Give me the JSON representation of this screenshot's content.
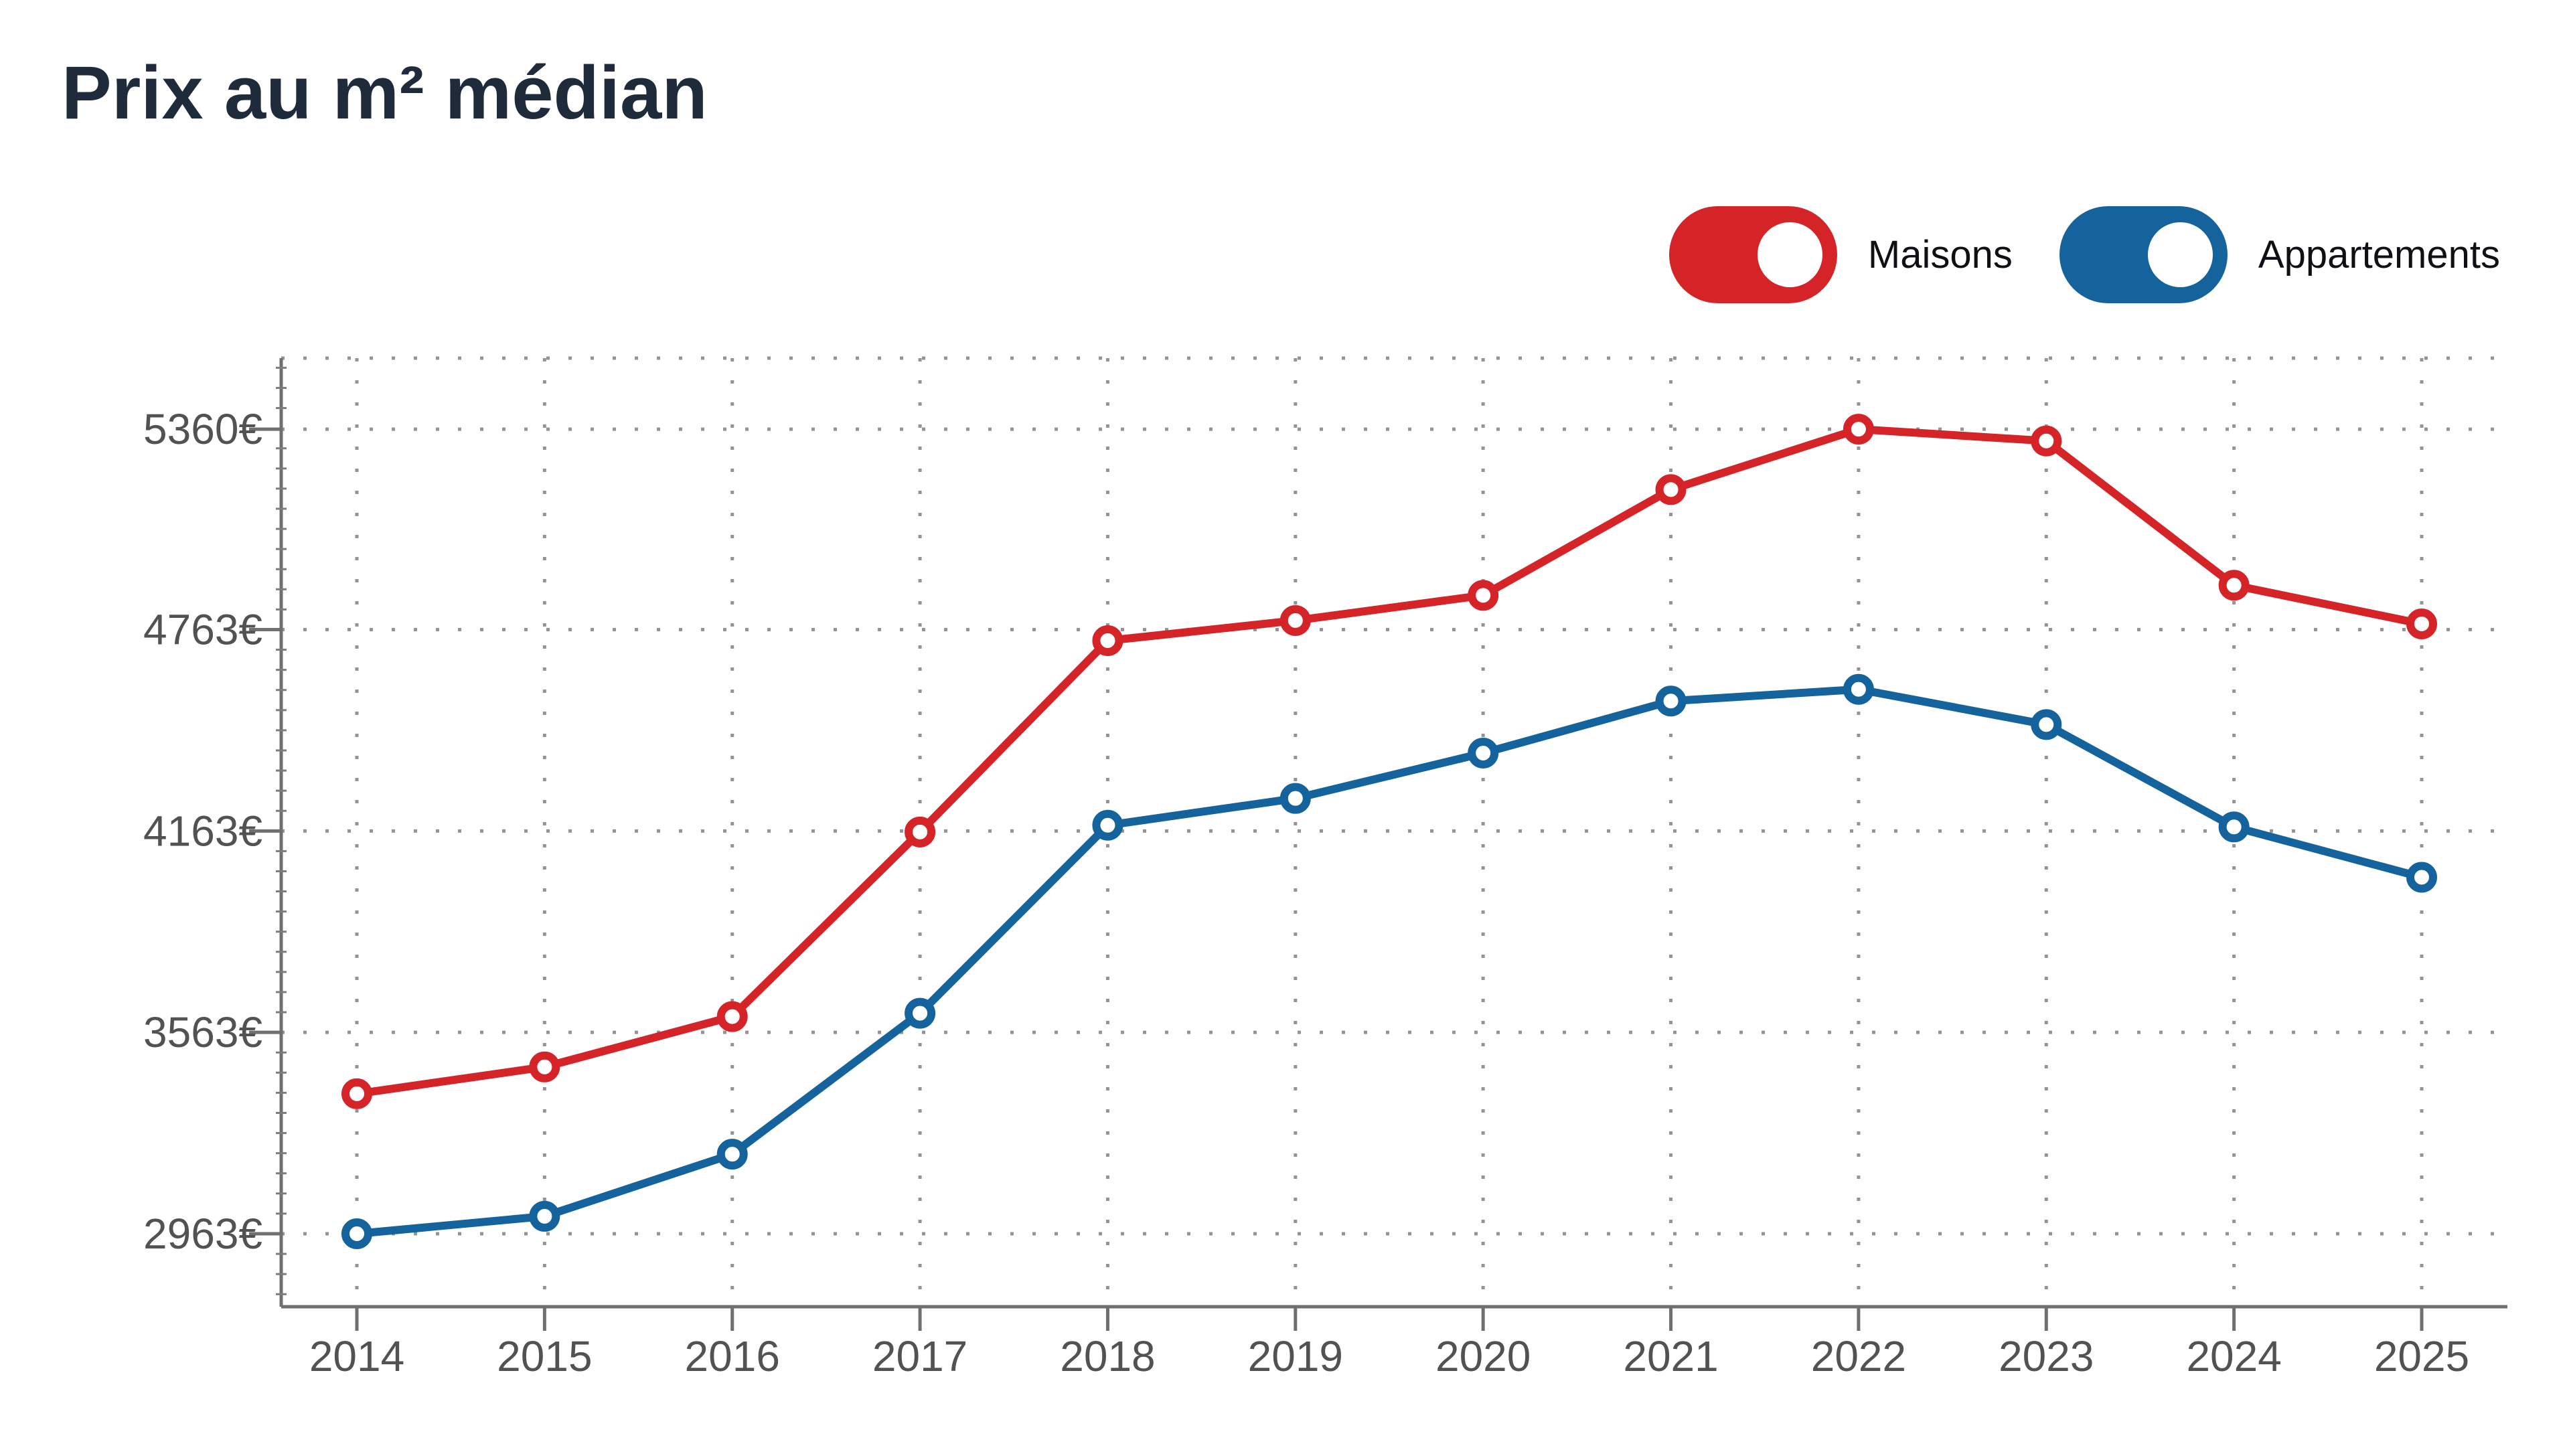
{
  "header": {
    "title": "Prix au m² médian"
  },
  "legend": {
    "position": "top-right",
    "items": [
      {
        "label": "Maisons",
        "color": "#d42428",
        "state": "on",
        "control": "toggle-switch"
      },
      {
        "label": "Appartements",
        "color": "#14639c",
        "state": "on",
        "control": "toggle-switch"
      }
    ]
  },
  "chart_data": {
    "type": "line",
    "title": "Prix au m² médian",
    "x_labels": [
      "2014",
      "2015",
      "2016",
      "2017",
      "2018",
      "2019",
      "2020",
      "2021",
      "2022",
      "2023",
      "2024",
      "2025"
    ],
    "series": [
      {
        "name": "Maisons",
        "color": "#d42428",
        "values": [
          3380,
          3460,
          3610,
          4160,
          4730,
          4790,
          4865,
          5180,
          5360,
          5325,
          4895,
          4780
        ]
      },
      {
        "name": "Appartements",
        "color": "#14639c",
        "values": [
          2963,
          3015,
          3200,
          3620,
          4180,
          4260,
          4395,
          4550,
          4585,
          4480,
          4175,
          4025
        ]
      }
    ],
    "y_ticks": [
      {
        "value": 2963,
        "label": "2963€"
      },
      {
        "value": 3563,
        "label": "3563€"
      },
      {
        "value": 4163,
        "label": "4163€"
      },
      {
        "value": 4763,
        "label": "4763€"
      },
      {
        "value": 5360,
        "label": "5360€"
      }
    ],
    "y_axis_range": [
      2746,
      5571
    ],
    "currency": "€",
    "grid": "dotted",
    "marker": "open-circle",
    "legend_position": "top-right",
    "colors": {
      "grid_dots": "#949494",
      "axis_line": "#6f6f6f",
      "tick_label": "#525252",
      "title": "#1f2b3a",
      "background": "#ffffff"
    }
  }
}
